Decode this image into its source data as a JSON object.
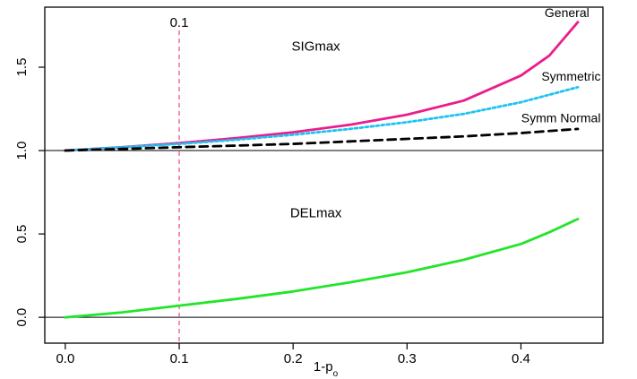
{
  "chart_data": {
    "type": "line",
    "title": "",
    "xlabel": "1-p",
    "xlabel_sub": "o",
    "ylabel": "",
    "xlim": [
      -0.018,
      0.472
    ],
    "ylim": [
      -0.155,
      1.86
    ],
    "x_ticks": [
      0.0,
      0.1,
      0.2,
      0.3,
      0.4
    ],
    "x_tick_labels": [
      "0.0",
      "0.1",
      "0.2",
      "0.3",
      "0.4"
    ],
    "y_ticks": [
      0.0,
      0.5,
      1.0,
      1.5
    ],
    "y_tick_labels": [
      "0.0",
      "0.5",
      "1.0",
      "1.5"
    ],
    "hlines": [
      0.0,
      1.0
    ],
    "vline": {
      "x": 0.1,
      "label": "0.1",
      "color": "#f04f9a"
    },
    "annotations": [
      {
        "text": "SIGmax",
        "x": 0.22,
        "y": 1.6
      },
      {
        "text": "DELmax",
        "x": 0.22,
        "y": 0.6
      }
    ],
    "series": [
      {
        "name": "General",
        "color": "#ec1c8c",
        "dash": "solid",
        "label_at": [
          0.46,
          1.8
        ],
        "x": [
          0.0,
          0.05,
          0.1,
          0.15,
          0.2,
          0.25,
          0.3,
          0.35,
          0.4,
          0.425,
          0.45
        ],
        "y": [
          1.0,
          1.02,
          1.045,
          1.075,
          1.11,
          1.155,
          1.215,
          1.3,
          1.45,
          1.57,
          1.77
        ]
      },
      {
        "name": "Symmetric",
        "color": "#1ec3f0",
        "dash": "dotted",
        "label_at": [
          0.47,
          1.42
        ],
        "x": [
          0.0,
          0.05,
          0.1,
          0.15,
          0.2,
          0.25,
          0.3,
          0.35,
          0.4,
          0.45
        ],
        "y": [
          1.0,
          1.02,
          1.04,
          1.065,
          1.095,
          1.13,
          1.17,
          1.22,
          1.29,
          1.38
        ]
      },
      {
        "name": "Symm Normal",
        "color": "#000000",
        "dash": "dashed",
        "label_at": [
          0.47,
          1.17
        ],
        "x": [
          0.0,
          0.05,
          0.1,
          0.15,
          0.2,
          0.25,
          0.3,
          0.35,
          0.4,
          0.45
        ],
        "y": [
          1.0,
          1.01,
          1.02,
          1.03,
          1.04,
          1.055,
          1.07,
          1.085,
          1.105,
          1.13
        ]
      },
      {
        "name": "",
        "color": "#22e52a",
        "dash": "solid",
        "x": [
          0.0,
          0.05,
          0.1,
          0.15,
          0.2,
          0.25,
          0.3,
          0.35,
          0.4,
          0.425,
          0.45
        ],
        "y": [
          0.0,
          0.03,
          0.07,
          0.11,
          0.155,
          0.21,
          0.27,
          0.345,
          0.44,
          0.51,
          0.59
        ]
      }
    ]
  }
}
